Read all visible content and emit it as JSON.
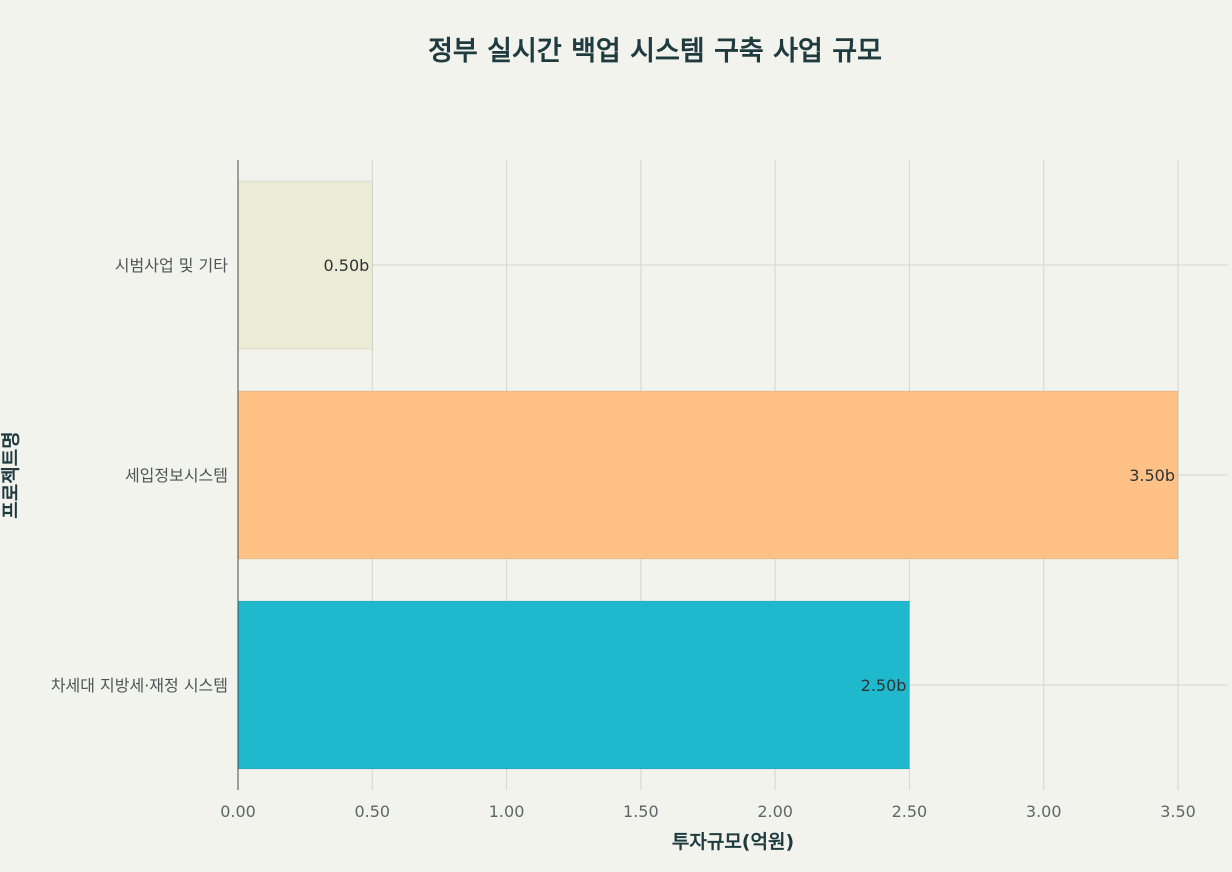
{
  "chart_data": {
    "type": "bar",
    "orientation": "horizontal",
    "title": "정부 실시간 백업 시스템 구축 사업 규모",
    "xlabel": "투자규모(억원)",
    "ylabel": "프로젝트명",
    "categories": [
      "시범사업 및 기타",
      "세입정보시스템",
      "차세대 지방세·재정 시스템"
    ],
    "values": [
      0.5,
      3.5,
      2.5
    ],
    "data_labels": [
      "0.50b",
      "3.50b",
      "2.50b"
    ],
    "colors": [
      "#ecebd6",
      "#ffc185",
      "#1fb8cd"
    ],
    "xlim": [
      0,
      3.5
    ],
    "xticks": [
      0,
      0.5,
      1.0,
      1.5,
      2.0,
      2.5,
      3.0,
      3.5
    ],
    "xtick_labels": [
      "0.00",
      "0.50",
      "1.00",
      "1.50",
      "2.00",
      "2.50",
      "3.00",
      "3.50"
    ],
    "grid": true,
    "legend": "none"
  }
}
